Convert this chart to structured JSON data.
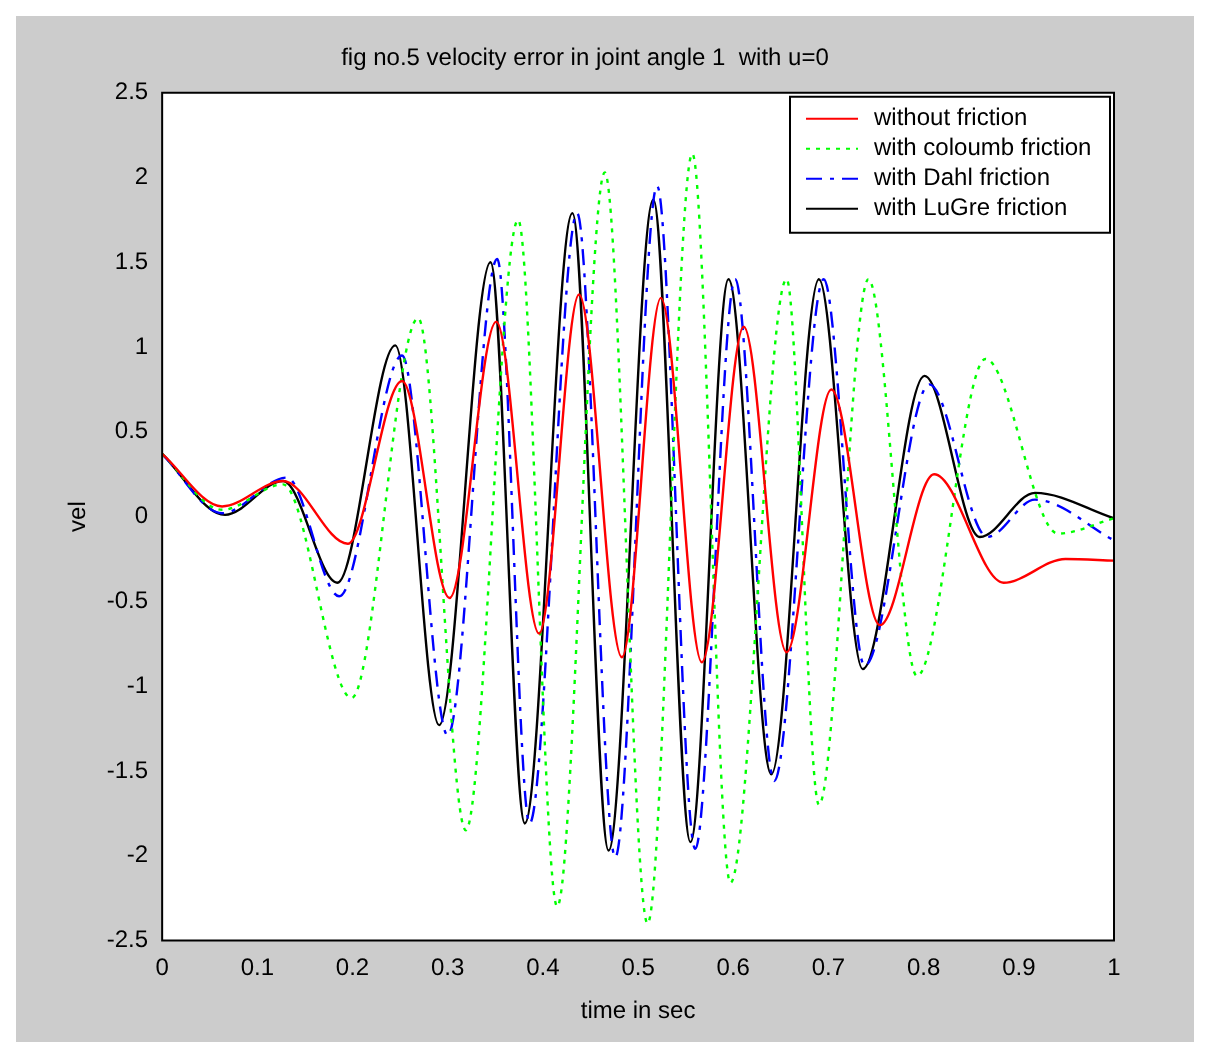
{
  "chart_data": {
    "type": "line",
    "title": "fig no.5 velocity error in joint angle 1  with u=0",
    "xlabel": "time in sec",
    "ylabel": "vel",
    "xlim": [
      0,
      1
    ],
    "ylim": [
      -2.5,
      2.5
    ],
    "xticks": [
      0,
      0.1,
      0.2,
      0.3,
      0.4,
      0.5,
      0.6,
      0.7,
      0.8,
      0.9,
      1
    ],
    "yticks": [
      -2.5,
      -2,
      -1.5,
      -1,
      -0.5,
      0,
      0.5,
      1,
      1.5,
      2,
      2.5
    ],
    "grid": false,
    "legend": "top right",
    "marker": "none",
    "series": [
      {
        "name": "without friction",
        "color": "#ff0000",
        "line_style": "solid",
        "x": [
          0,
          0.063,
          0.127,
          0.195,
          0.252,
          0.302,
          0.351,
          0.396,
          0.438,
          0.483,
          0.524,
          0.567,
          0.611,
          0.656,
          0.703,
          0.754,
          0.811,
          0.884,
          0.949,
          1
        ],
        "values": [
          0.37,
          0.06,
          0.21,
          -0.16,
          0.8,
          -0.48,
          1.15,
          -0.69,
          1.31,
          -0.83,
          1.29,
          -0.86,
          1.12,
          -0.8,
          0.75,
          -0.64,
          0.25,
          -0.39,
          -0.25,
          -0.26
        ]
      },
      {
        "name": "with coloumb friction",
        "color": "#00ff00",
        "line_style": "dotted",
        "x": [
          0,
          0.063,
          0.127,
          0.199,
          0.269,
          0.319,
          0.374,
          0.415,
          0.465,
          0.51,
          0.557,
          0.597,
          0.656,
          0.69,
          0.742,
          0.793,
          0.865,
          0.941,
          1
        ],
        "values": [
          0.37,
          0.04,
          0.19,
          -1.07,
          1.17,
          -1.85,
          1.75,
          -2.3,
          2.03,
          -2.4,
          2.14,
          -2.16,
          1.4,
          -1.7,
          1.4,
          -0.94,
          0.93,
          -0.1,
          -0.01
        ]
      },
      {
        "name": "with Dahl friction",
        "color": "#0000ff",
        "line_style": "dashed",
        "x": [
          0,
          0.063,
          0.131,
          0.186,
          0.252,
          0.3,
          0.352,
          0.386,
          0.436,
          0.476,
          0.52,
          0.56,
          0.602,
          0.643,
          0.695,
          0.738,
          0.806,
          0.867,
          0.917,
          1
        ],
        "values": [
          0.37,
          0.02,
          0.23,
          -0.47,
          0.95,
          -1.29,
          1.52,
          -1.81,
          1.79,
          -2.01,
          1.95,
          -1.96,
          1.4,
          -1.56,
          1.4,
          -0.88,
          0.78,
          -0.12,
          0.1,
          -0.14
        ]
      },
      {
        "name": "with LuGre friction",
        "color": "#000000",
        "line_style": "solid",
        "x": [
          0,
          0.066,
          0.127,
          0.184,
          0.245,
          0.291,
          0.345,
          0.381,
          0.431,
          0.469,
          0.516,
          0.555,
          0.595,
          0.64,
          0.69,
          0.736,
          0.801,
          0.859,
          0.917,
          1
        ],
        "values": [
          0.37,
          0.01,
          0.21,
          -0.39,
          1.01,
          -1.23,
          1.5,
          -1.81,
          1.79,
          -1.97,
          1.87,
          -1.92,
          1.4,
          -1.52,
          1.4,
          -0.9,
          0.83,
          -0.12,
          0.14,
          -0.01
        ]
      }
    ]
  }
}
